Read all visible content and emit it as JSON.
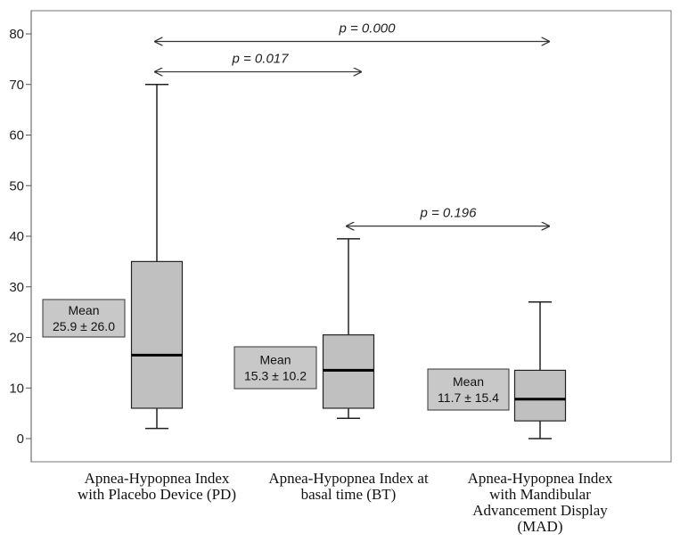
{
  "chart_data": {
    "type": "box",
    "title": "",
    "xlabel": "",
    "ylabel": "",
    "ylim": [
      -5,
      85
    ],
    "yticks": [
      0,
      10,
      20,
      30,
      40,
      50,
      60,
      70,
      80
    ],
    "grid": false,
    "categories": [
      [
        "Apnea-Hypopnea Index",
        "with Placebo Device (PD)"
      ],
      [
        "Apnea-Hypopnea Index at",
        "basal time (BT)"
      ],
      [
        "Apnea-Hypopnea Index",
        "with Mandibular",
        "Advancement Display",
        "(MAD)"
      ]
    ],
    "boxes": [
      {
        "min": 2,
        "q1": 6,
        "median": 16.5,
        "q3": 35,
        "max": 70
      },
      {
        "min": 4,
        "q1": 6,
        "median": 13.5,
        "q3": 20.5,
        "max": 39.5
      },
      {
        "min": 0,
        "q1": 3.5,
        "median": 7.8,
        "q3": 13.5,
        "max": 27
      }
    ],
    "means": [
      {
        "label": "Mean",
        "value": "25.9 ± 26.0"
      },
      {
        "label": "Mean",
        "value": "15.3 ± 10.2"
      },
      {
        "label": "Mean",
        "value": "11.7 ± 15.4"
      }
    ],
    "comparisons": [
      {
        "from": 0,
        "to": 2,
        "label": "p = 0.000",
        "y": 78.5
      },
      {
        "from": 0,
        "to": 1,
        "label": "p = 0.017",
        "y": 72.5
      },
      {
        "from": 1,
        "to": 2,
        "label": "p = 0.196",
        "y": 42
      }
    ],
    "colors": {
      "box_fill": "#c0c0c0",
      "mean_box_fill": "#c8c8c8",
      "stroke": "#222222"
    }
  }
}
